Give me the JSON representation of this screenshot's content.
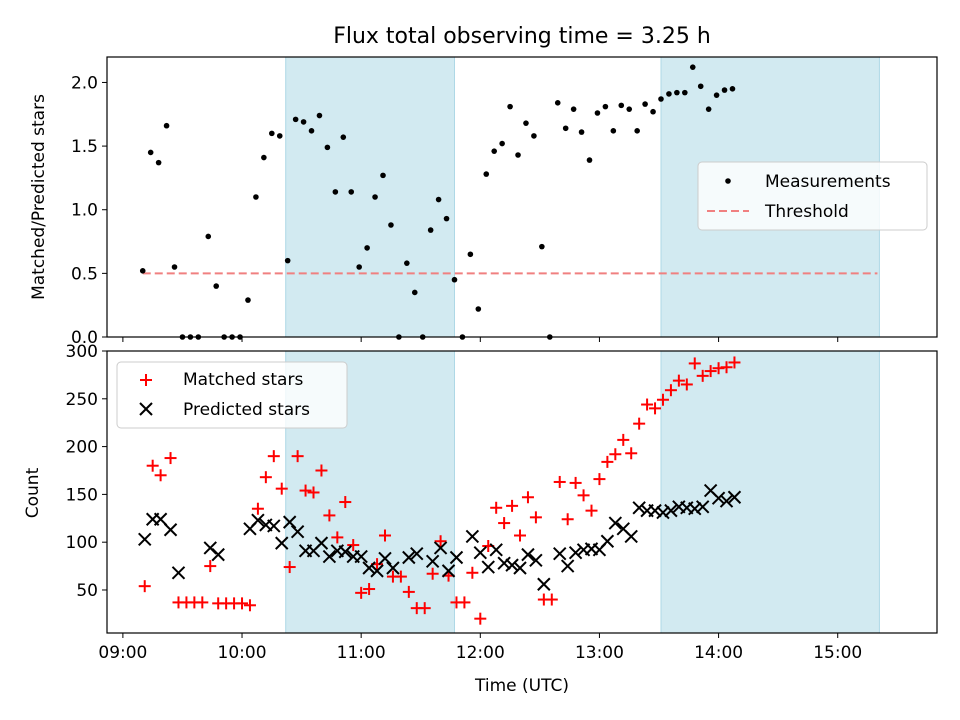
{
  "title": "Flux total observing time = 3.25 h",
  "colors": {
    "measurement": "#000000",
    "threshold": "#f08080",
    "matched": "#ff0000",
    "predicted": "#000000",
    "shade": "#add8e6"
  },
  "chart_data": [
    {
      "type": "scatter",
      "ylabel": "Matched/Predicted stars",
      "ylim": [
        0,
        2.2
      ],
      "yticks": [
        0.0,
        0.5,
        1.0,
        1.5,
        2.0
      ],
      "xlim": [
        "08:52",
        "15:50"
      ],
      "legend_position": "center-right",
      "legend": {
        "measurements": "Measurements",
        "threshold": "Threshold"
      },
      "shaded_intervals": [
        [
          "10:22",
          "11:47"
        ],
        [
          "13:31",
          "15:21"
        ]
      ],
      "threshold": {
        "value": 0.5,
        "x_start": "09:10",
        "x_end": "15:20"
      },
      "series": [
        {
          "name": "Measurements",
          "points": [
            [
              "09:10",
              0.52
            ],
            [
              "09:14",
              1.45
            ],
            [
              "09:18",
              1.37
            ],
            [
              "09:22",
              1.66
            ],
            [
              "09:26",
              0.55
            ],
            [
              "09:30",
              0.0
            ],
            [
              "09:34",
              0.0
            ],
            [
              "09:38",
              0.0
            ],
            [
              "09:43",
              0.79
            ],
            [
              "09:47",
              0.4
            ],
            [
              "09:51",
              0.0
            ],
            [
              "09:55",
              0.0
            ],
            [
              "09:59",
              0.0
            ],
            [
              "10:03",
              0.29
            ],
            [
              "10:07",
              1.1
            ],
            [
              "10:11",
              1.41
            ],
            [
              "10:15",
              1.6
            ],
            [
              "10:19",
              1.58
            ],
            [
              "10:23",
              0.6
            ],
            [
              "10:27",
              1.71
            ],
            [
              "10:31",
              1.69
            ],
            [
              "10:35",
              1.62
            ],
            [
              "10:39",
              1.74
            ],
            [
              "10:43",
              1.49
            ],
            [
              "10:47",
              1.14
            ],
            [
              "10:51",
              1.57
            ],
            [
              "10:55",
              1.14
            ],
            [
              "10:59",
              0.55
            ],
            [
              "11:03",
              0.7
            ],
            [
              "11:07",
              1.1
            ],
            [
              "11:11",
              1.27
            ],
            [
              "11:15",
              0.88
            ],
            [
              "11:19",
              0.0
            ],
            [
              "11:23",
              0.58
            ],
            [
              "11:27",
              0.35
            ],
            [
              "11:31",
              0.0
            ],
            [
              "11:35",
              0.84
            ],
            [
              "11:39",
              1.08
            ],
            [
              "11:43",
              0.93
            ],
            [
              "11:47",
              0.45
            ],
            [
              "11:51",
              0.0
            ],
            [
              "11:55",
              0.65
            ],
            [
              "11:59",
              0.22
            ],
            [
              "12:03",
              1.28
            ],
            [
              "12:07",
              1.46
            ],
            [
              "12:11",
              1.52
            ],
            [
              "12:15",
              1.81
            ],
            [
              "12:19",
              1.43
            ],
            [
              "12:23",
              1.68
            ],
            [
              "12:27",
              1.58
            ],
            [
              "12:31",
              0.71
            ],
            [
              "12:35",
              0.0
            ],
            [
              "12:39",
              1.84
            ],
            [
              "12:43",
              1.64
            ],
            [
              "12:47",
              1.79
            ],
            [
              "12:51",
              1.61
            ],
            [
              "12:55",
              1.39
            ],
            [
              "12:59",
              1.76
            ],
            [
              "13:03",
              1.81
            ],
            [
              "13:07",
              1.62
            ],
            [
              "13:11",
              1.82
            ],
            [
              "13:15",
              1.79
            ],
            [
              "13:19",
              1.62
            ],
            [
              "13:23",
              1.83
            ],
            [
              "13:27",
              1.77
            ],
            [
              "13:31",
              1.87
            ],
            [
              "13:35",
              1.91
            ],
            [
              "13:39",
              1.92
            ],
            [
              "13:43",
              1.92
            ],
            [
              "13:47",
              2.12
            ],
            [
              "13:51",
              1.97
            ],
            [
              "13:55",
              1.79
            ],
            [
              "13:59",
              1.9
            ],
            [
              "14:03",
              1.94
            ],
            [
              "14:07",
              1.95
            ]
          ]
        }
      ]
    },
    {
      "type": "scatter",
      "xlabel": "Time (UTC)",
      "ylabel": "Count",
      "ylim": [
        5,
        300
      ],
      "yticks": [
        50,
        100,
        150,
        200,
        250,
        300
      ],
      "xlim": [
        "08:52",
        "15:50"
      ],
      "xticks": [
        "09:00",
        "10:00",
        "11:00",
        "12:00",
        "13:00",
        "14:00",
        "15:00"
      ],
      "legend_position": "upper-left",
      "shaded_intervals": [
        [
          "10:22",
          "11:47"
        ],
        [
          "13:31",
          "15:21"
        ]
      ],
      "series": [
        {
          "name": "Matched stars",
          "marker": "+",
          "points": [
            [
              "09:11",
              54
            ],
            [
              "09:15",
              180
            ],
            [
              "09:19",
              170
            ],
            [
              "09:24",
              188
            ],
            [
              "09:28",
              37
            ],
            [
              "09:32",
              37
            ],
            [
              "09:36",
              37
            ],
            [
              "09:40",
              37
            ],
            [
              "09:44",
              75
            ],
            [
              "09:48",
              36
            ],
            [
              "09:52",
              36
            ],
            [
              "09:56",
              36
            ],
            [
              "10:00",
              36
            ],
            [
              "10:04",
              34
            ],
            [
              "10:08",
              135
            ],
            [
              "10:12",
              168
            ],
            [
              "10:16",
              190
            ],
            [
              "10:20",
              156
            ],
            [
              "10:24",
              74
            ],
            [
              "10:28",
              190
            ],
            [
              "10:32",
              154
            ],
            [
              "10:36",
              152
            ],
            [
              "10:40",
              175
            ],
            [
              "10:44",
              128
            ],
            [
              "10:48",
              105
            ],
            [
              "10:52",
              142
            ],
            [
              "10:56",
              97
            ],
            [
              "11:00",
              47
            ],
            [
              "11:04",
              51
            ],
            [
              "11:08",
              77
            ],
            [
              "11:12",
              107
            ],
            [
              "11:16",
              64
            ],
            [
              "11:20",
              64
            ],
            [
              "11:24",
              48
            ],
            [
              "11:28",
              31
            ],
            [
              "11:32",
              31
            ],
            [
              "11:36",
              67
            ],
            [
              "11:40",
              101
            ],
            [
              "11:44",
              65
            ],
            [
              "11:48",
              37
            ],
            [
              "11:52",
              37
            ],
            [
              "11:56",
              68
            ],
            [
              "12:00",
              20
            ],
            [
              "12:04",
              96
            ],
            [
              "12:08",
              136
            ],
            [
              "12:12",
              120
            ],
            [
              "12:16",
              138
            ],
            [
              "12:20",
              107
            ],
            [
              "12:24",
              147
            ],
            [
              "12:28",
              126
            ],
            [
              "12:32",
              40
            ],
            [
              "12:36",
              40
            ],
            [
              "12:40",
              163
            ],
            [
              "12:44",
              124
            ],
            [
              "12:48",
              162
            ],
            [
              "12:52",
              149
            ],
            [
              "12:56",
              133
            ],
            [
              "13:00",
              166
            ],
            [
              "13:04",
              184
            ],
            [
              "13:08",
              192
            ],
            [
              "13:12",
              207
            ],
            [
              "13:16",
              193
            ],
            [
              "13:20",
              224
            ],
            [
              "13:24",
              244
            ],
            [
              "13:28",
              240
            ],
            [
              "13:32",
              249
            ],
            [
              "13:36",
              259
            ],
            [
              "13:40",
              269
            ],
            [
              "13:44",
              265
            ],
            [
              "13:48",
              287
            ],
            [
              "13:52",
              274
            ],
            [
              "13:56",
              279
            ],
            [
              "14:00",
              282
            ],
            [
              "14:04",
              283
            ],
            [
              "14:08",
              288
            ]
          ]
        },
        {
          "name": "Predicted stars",
          "marker": "x",
          "points": [
            [
              "09:11",
              103
            ],
            [
              "09:15",
              124
            ],
            [
              "09:19",
              124
            ],
            [
              "09:24",
              113
            ],
            [
              "09:28",
              68
            ],
            [
              "09:44",
              94
            ],
            [
              "09:48",
              87
            ],
            [
              "10:04",
              114
            ],
            [
              "10:08",
              123
            ],
            [
              "10:12",
              118
            ],
            [
              "10:16",
              117
            ],
            [
              "10:20",
              99
            ],
            [
              "10:24",
              121
            ],
            [
              "10:28",
              111
            ],
            [
              "10:32",
              91
            ],
            [
              "10:36",
              91
            ],
            [
              "10:40",
              99
            ],
            [
              "10:44",
              85
            ],
            [
              "10:48",
              91
            ],
            [
              "10:52",
              90
            ],
            [
              "10:56",
              85
            ],
            [
              "11:00",
              85
            ],
            [
              "11:04",
              73
            ],
            [
              "11:08",
              70
            ],
            [
              "11:12",
              83
            ],
            [
              "11:16",
              73
            ],
            [
              "11:24",
              84
            ],
            [
              "11:28",
              88
            ],
            [
              "11:36",
              80
            ],
            [
              "11:40",
              94
            ],
            [
              "11:44",
              70
            ],
            [
              "11:48",
              84
            ],
            [
              "11:56",
              106
            ],
            [
              "12:00",
              89
            ],
            [
              "12:04",
              74
            ],
            [
              "12:08",
              92
            ],
            [
              "12:12",
              78
            ],
            [
              "12:16",
              76
            ],
            [
              "12:20",
              73
            ],
            [
              "12:24",
              87
            ],
            [
              "12:28",
              81
            ],
            [
              "12:32",
              56
            ],
            [
              "12:40",
              88
            ],
            [
              "12:44",
              75
            ],
            [
              "12:48",
              89
            ],
            [
              "12:52",
              92
            ],
            [
              "12:56",
              93
            ],
            [
              "13:00",
              92
            ],
            [
              "13:04",
              101
            ],
            [
              "13:08",
              120
            ],
            [
              "13:12",
              114
            ],
            [
              "13:16",
              106
            ],
            [
              "13:20",
              136
            ],
            [
              "13:24",
              133
            ],
            [
              "13:28",
              133
            ],
            [
              "13:32",
              131
            ],
            [
              "13:36",
              133
            ],
            [
              "13:40",
              137
            ],
            [
              "13:44",
              136
            ],
            [
              "13:48",
              135
            ],
            [
              "13:52",
              137
            ],
            [
              "13:56",
              154
            ],
            [
              "14:00",
              146
            ],
            [
              "14:04",
              143
            ],
            [
              "14:08",
              147
            ]
          ]
        }
      ]
    }
  ]
}
